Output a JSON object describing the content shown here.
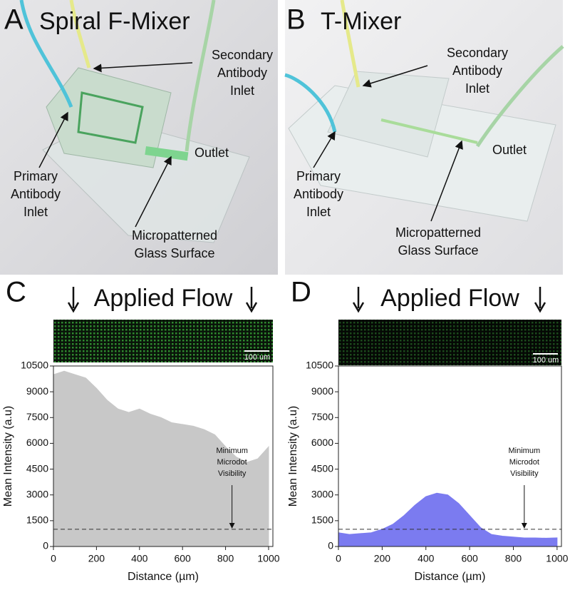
{
  "panels": [
    {
      "label": "A",
      "title": "Spiral F-Mixer",
      "secondary_inlet": [
        "Secondary",
        "Antibody",
        "Inlet"
      ],
      "primary_inlet": [
        "Primary",
        "Antibody",
        "Inlet"
      ],
      "outlet": "Outlet",
      "surface": [
        "Micropatterned",
        "Glass Surface"
      ]
    },
    {
      "label": "B",
      "title": "T-Mixer",
      "secondary_inlet": [
        "Secondary",
        "Antibody",
        "Inlet"
      ],
      "primary_inlet": [
        "Primary",
        "Antibody",
        "Inlet"
      ],
      "outlet": "Outlet",
      "surface": [
        "Micropatterned",
        "Glass Surface"
      ]
    }
  ],
  "chart_data": [
    {
      "type": "area",
      "panel_label": "C",
      "title": "Applied Flow",
      "scale_bar": "100 um",
      "x_label": "Distance (µm)",
      "y_label": "Mean Intensity (a.u)",
      "x": [
        0,
        50,
        100,
        150,
        200,
        250,
        300,
        350,
        400,
        450,
        500,
        550,
        600,
        650,
        700,
        750,
        800,
        850,
        900,
        950,
        1000
      ],
      "series": [
        {
          "color": "#c8c8c8",
          "values": [
            10000,
            10200,
            10000,
            9800,
            9200,
            8500,
            8000,
            7800,
            8000,
            7700,
            7500,
            7200,
            7100,
            7000,
            6800,
            6500,
            5800,
            5200,
            4900,
            5100,
            5800
          ]
        }
      ],
      "threshold": 1000,
      "annotation": {
        "text": [
          "Minimum",
          "Microdot",
          "Visibility"
        ],
        "x": 830
      },
      "xlim": [
        0,
        1020
      ],
      "ylim": [
        0,
        10500
      ],
      "xticks": [
        0,
        200,
        400,
        600,
        800,
        1000
      ],
      "yticks": [
        0,
        1500,
        3000,
        4500,
        6000,
        7500,
        9000,
        10500
      ]
    },
    {
      "type": "area",
      "panel_label": "D",
      "title": "Applied Flow",
      "scale_bar": "100 um",
      "x_label": "Distance (µm)",
      "y_label": "Mean Intensity (a.u)",
      "x": [
        0,
        50,
        100,
        150,
        200,
        250,
        300,
        350,
        400,
        450,
        500,
        550,
        600,
        650,
        700,
        750,
        800,
        850,
        900,
        950,
        1000
      ],
      "series": [
        {
          "color": "#7b7bf0",
          "values": [
            800,
            700,
            750,
            800,
            1000,
            1300,
            1800,
            2400,
            2900,
            3100,
            3000,
            2500,
            1800,
            1100,
            700,
            600,
            550,
            500,
            500,
            480,
            500
          ]
        }
      ],
      "threshold": 1000,
      "annotation": {
        "text": [
          "Minimum",
          "Microdot",
          "Visibility"
        ],
        "x": 850
      },
      "xlim": [
        0,
        1020
      ],
      "ylim": [
        0,
        10500
      ],
      "xticks": [
        0,
        200,
        400,
        600,
        800,
        1000
      ],
      "yticks": [
        0,
        1500,
        3000,
        4500,
        6000,
        7500,
        9000,
        10500
      ]
    }
  ]
}
